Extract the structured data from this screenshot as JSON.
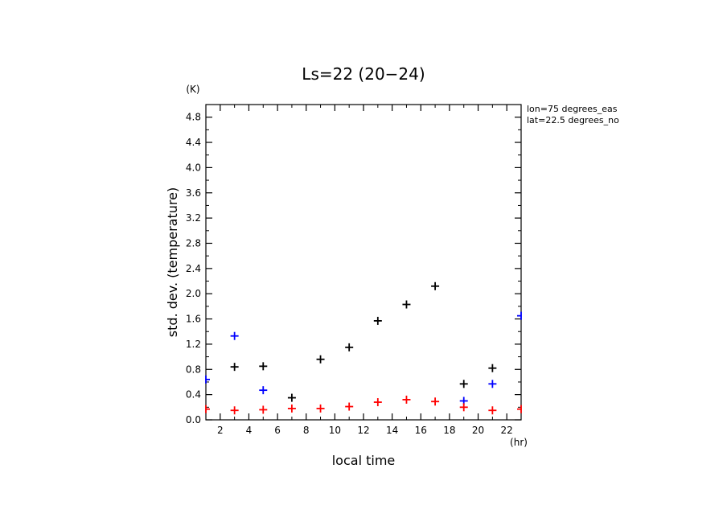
{
  "chart_data": {
    "type": "scatter",
    "title": "Ls=22 (20−24)",
    "xlabel": "local time",
    "ylabel": "std. dev. (temperature)",
    "x_unit": "(hr)",
    "y_unit": "(K)",
    "annotations": [
      "lon=75 degrees_eas",
      "lat=22.5 degrees_no"
    ],
    "xlim": [
      1,
      23
    ],
    "ylim": [
      0,
      5.0
    ],
    "x_ticks": [
      2,
      4,
      6,
      8,
      10,
      12,
      14,
      16,
      18,
      20,
      22
    ],
    "y_ticks": [
      0.0,
      0.4,
      0.8,
      1.2,
      1.6,
      2.0,
      2.4,
      2.8,
      3.2,
      3.6,
      4.0,
      4.4,
      4.8
    ],
    "grid": false,
    "series": [
      {
        "color": "#000000",
        "points": [
          {
            "x": 3,
            "y": 0.84
          },
          {
            "x": 5,
            "y": 0.85
          },
          {
            "x": 7,
            "y": 0.35
          },
          {
            "x": 9,
            "y": 0.96
          },
          {
            "x": 11,
            "y": 1.15
          },
          {
            "x": 13,
            "y": 1.57
          },
          {
            "x": 15,
            "y": 1.83
          },
          {
            "x": 17,
            "y": 2.12
          },
          {
            "x": 19,
            "y": 0.57
          },
          {
            "x": 21,
            "y": 0.82
          }
        ]
      },
      {
        "color": "#0000ff",
        "points": [
          {
            "x": 1,
            "y": 0.64
          },
          {
            "x": 3,
            "y": 1.33
          },
          {
            "x": 5,
            "y": 0.47
          },
          {
            "x": 19,
            "y": 0.3
          },
          {
            "x": 21,
            "y": 0.57
          },
          {
            "x": 23,
            "y": 1.65
          }
        ]
      },
      {
        "color": "#ff0000",
        "points": [
          {
            "x": 1,
            "y": 0.17
          },
          {
            "x": 3,
            "y": 0.15
          },
          {
            "x": 5,
            "y": 0.16
          },
          {
            "x": 7,
            "y": 0.18
          },
          {
            "x": 9,
            "y": 0.18
          },
          {
            "x": 11,
            "y": 0.21
          },
          {
            "x": 13,
            "y": 0.28
          },
          {
            "x": 15,
            "y": 0.32
          },
          {
            "x": 17,
            "y": 0.29
          },
          {
            "x": 19,
            "y": 0.2
          },
          {
            "x": 21,
            "y": 0.15
          },
          {
            "x": 23,
            "y": 0.17
          }
        ]
      }
    ]
  }
}
